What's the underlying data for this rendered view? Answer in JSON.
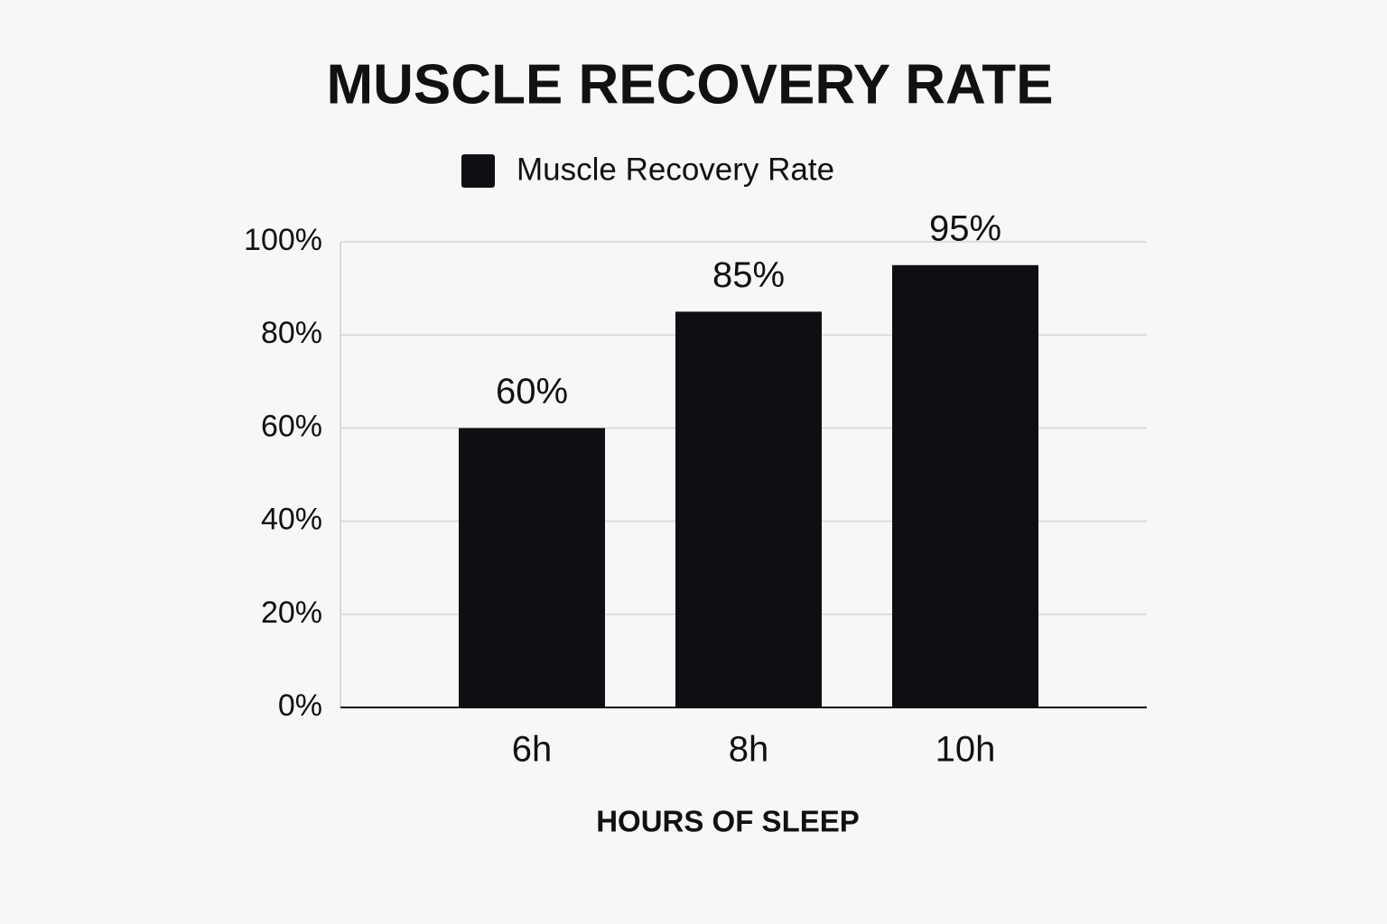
{
  "chart_data": {
    "type": "bar",
    "title": "MUSCLE RECOVERY RATE",
    "x_label": "HOURS OF SLEEP",
    "categories": [
      "6h",
      "8h",
      "10h"
    ],
    "series": [
      {
        "name": "Muscle Recovery Rate",
        "color": "#0d0f12",
        "values": [
          60,
          85,
          95
        ],
        "value_labels": [
          "60%",
          "85%",
          "95%"
        ]
      }
    ],
    "ylim": [
      0,
      100
    ],
    "yticks": [
      {
        "value": 0,
        "label": "0%"
      },
      {
        "value": 20,
        "label": "20%"
      },
      {
        "value": 40,
        "label": "40%"
      },
      {
        "value": 60,
        "label": "60%"
      },
      {
        "value": 80,
        "label": "80%"
      },
      {
        "value": 100,
        "label": "100%"
      }
    ],
    "grid": true,
    "legend": "top"
  }
}
